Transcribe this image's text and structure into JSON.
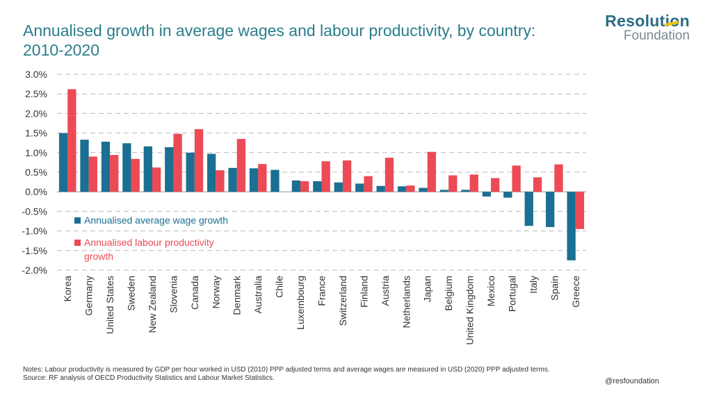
{
  "title": "Annualised growth in average wages and labour productivity, by country: 2010-2020",
  "logo": {
    "line1": "Resolution",
    "line2": "Foundation"
  },
  "notes": "Notes: Labour productivity is measured by GDP per hour worked in USD (2010) PPP adjusted terms and average wages are measured in USD (2020) PPP adjusted terms.",
  "source": "Source: RF analysis of OECD Productivity Statistics and Labour Market Statistics.",
  "handle": "@resfoundation",
  "colors": {
    "wage": "#1a6f93",
    "productivity": "#ec4a55",
    "grid": "#b8b8b8",
    "text": "#333333",
    "title": "#2a7d8b"
  },
  "chart_data": {
    "type": "bar",
    "categories": [
      "Korea",
      "Germany",
      "United States",
      "Sweden",
      "New Zealand",
      "Slovenia",
      "Canada",
      "Norway",
      "Denmark",
      "Australia",
      "Chile",
      "Luxembourg",
      "France",
      "Switzerland",
      "Finland",
      "Austria",
      "Netherlands",
      "Japan",
      "Belgium",
      "United Kingdom",
      "Mexico",
      "Portugal",
      "Italy",
      "Spain",
      "Greece"
    ],
    "series": [
      {
        "name": "Annualised average wage growth",
        "values": [
          1.5,
          1.33,
          1.28,
          1.24,
          1.16,
          1.14,
          1.0,
          0.97,
          0.61,
          0.6,
          0.56,
          0.29,
          0.27,
          0.24,
          0.21,
          0.15,
          0.14,
          0.1,
          0.05,
          0.05,
          -0.12,
          -0.15,
          -0.87,
          -0.9,
          -1.75
        ]
      },
      {
        "name": "Annualised labour productivity growth",
        "values": [
          2.62,
          0.9,
          0.94,
          0.84,
          0.62,
          1.48,
          1.6,
          0.55,
          1.35,
          0.71,
          null,
          0.27,
          0.78,
          0.8,
          0.4,
          0.87,
          0.16,
          1.02,
          0.42,
          0.44,
          0.35,
          0.67,
          0.37,
          0.7,
          -0.95
        ]
      }
    ],
    "yticks": [
      "3.0%",
      "2.5%",
      "2.0%",
      "1.5%",
      "1.0%",
      "0.5%",
      "0.0%",
      "-0.5%",
      "-1.0%",
      "-1.5%",
      "-2.0%"
    ],
    "ylim": [
      -2.0,
      3.0
    ],
    "grid": true,
    "legend_position": "left-middle"
  }
}
